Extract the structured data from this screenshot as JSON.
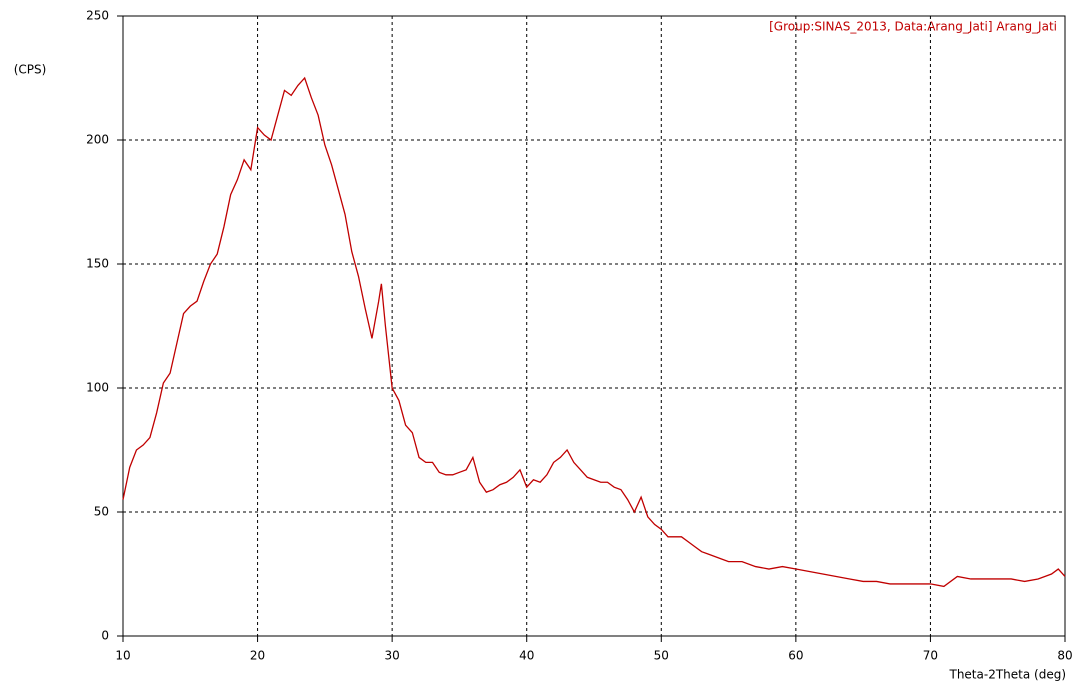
{
  "chart_data": {
    "type": "line",
    "y_label": "(CPS)",
    "x_label": "Theta-2Theta (deg)",
    "x": [
      10,
      10.5,
      11,
      11.5,
      12,
      12.5,
      13,
      13.5,
      14,
      14.5,
      15,
      15.5,
      16,
      16.5,
      17,
      17.5,
      18,
      18.5,
      19,
      19.5,
      20,
      20.5,
      21,
      21.5,
      22,
      22.5,
      23,
      23.5,
      24,
      24.5,
      25,
      25.5,
      26,
      26.5,
      27,
      27.5,
      28,
      28.5,
      29,
      29.2,
      29.5,
      30,
      30.5,
      31,
      31.5,
      32,
      32.5,
      33,
      33.5,
      34,
      34.5,
      35,
      35.5,
      36,
      36.5,
      37,
      37.5,
      38,
      38.5,
      39,
      39.5,
      40,
      40.5,
      41,
      41.5,
      42,
      42.5,
      43,
      43.5,
      44,
      44.5,
      45,
      45.5,
      46,
      46.5,
      47,
      47.5,
      48,
      48.5,
      49,
      49.5,
      50,
      50.5,
      51,
      51.5,
      52,
      52.5,
      53,
      53.5,
      54,
      54.5,
      55,
      56,
      57,
      58,
      59,
      60,
      61,
      62,
      63,
      64,
      65,
      66,
      67,
      68,
      69,
      70,
      71,
      72,
      73,
      74,
      75,
      76,
      77,
      78,
      79,
      79.5,
      80
    ],
    "series": [
      {
        "name": "[Group:SINAS_2013, Data:Arang_Jati] Arang_Jati",
        "color": "#c00000",
        "values": [
          55,
          68,
          75,
          77,
          80,
          90,
          102,
          106,
          118,
          130,
          133,
          135,
          143,
          150,
          154,
          165,
          178,
          184,
          192,
          188,
          205,
          202,
          200,
          210,
          220,
          218,
          222,
          225,
          217,
          210,
          198,
          190,
          180,
          170,
          155,
          145,
          132,
          120,
          135,
          142,
          125,
          100,
          95,
          85,
          82,
          72,
          70,
          70,
          66,
          65,
          65,
          66,
          67,
          72,
          62,
          58,
          59,
          61,
          62,
          64,
          67,
          60,
          63,
          62,
          65,
          70,
          72,
          75,
          70,
          67,
          64,
          63,
          62,
          62,
          60,
          59,
          55,
          50,
          56,
          48,
          45,
          43,
          40,
          40,
          40,
          38,
          36,
          34,
          33,
          32,
          31,
          30,
          30,
          28,
          27,
          28,
          27,
          26,
          25,
          24,
          23,
          22,
          22,
          21,
          21,
          21,
          21,
          20,
          24,
          23,
          23,
          23,
          23,
          22,
          23,
          25,
          27,
          24
        ]
      }
    ],
    "xlim": [
      10,
      80
    ],
    "xticks": [
      10,
      20,
      30,
      40,
      50,
      60,
      70,
      80
    ],
    "ylim": [
      0,
      250
    ],
    "yticks": [
      0,
      50,
      100,
      150,
      200,
      250
    ],
    "grid": true
  }
}
